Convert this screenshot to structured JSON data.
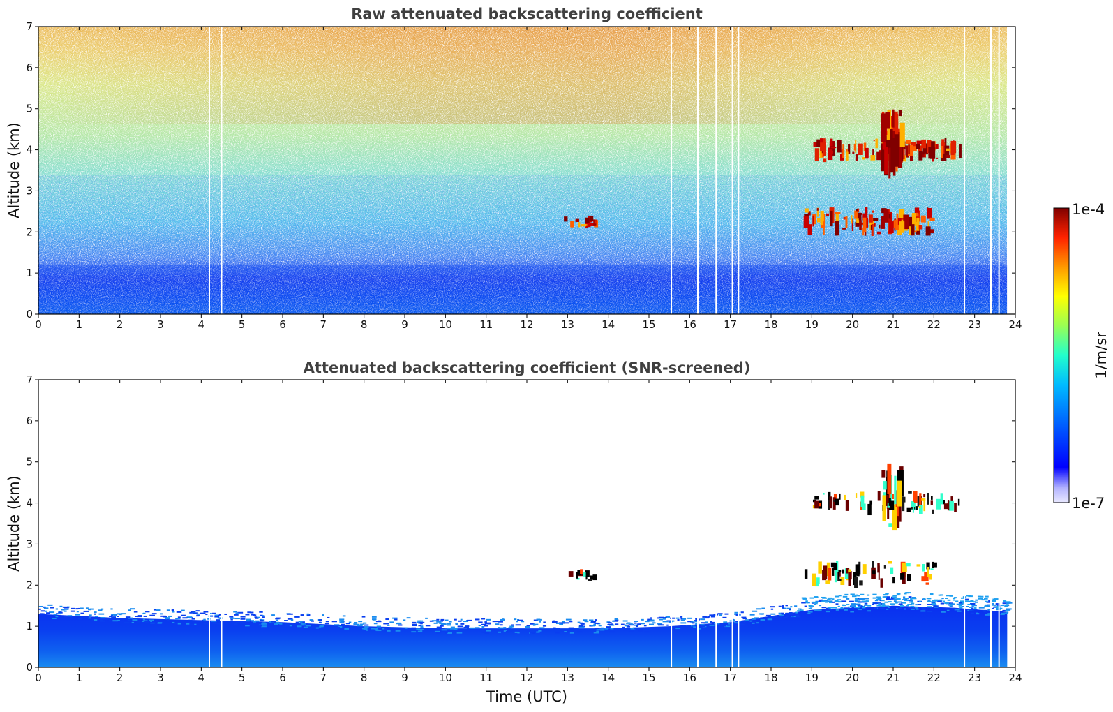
{
  "chart_data": [
    {
      "type": "heatmap",
      "title": "Raw attenuated backscattering coefficient",
      "xlabel": "",
      "ylabel": "Altitude (km)",
      "xlim": [
        0,
        24
      ],
      "ylim": [
        0,
        7
      ],
      "x_ticks": [
        "0",
        "1",
        "2",
        "3",
        "4",
        "5",
        "6",
        "7",
        "8",
        "9",
        "10",
        "11",
        "12",
        "13",
        "14",
        "15",
        "16",
        "17",
        "18",
        "19",
        "20",
        "21",
        "22",
        "23",
        "24"
      ],
      "y_ticks": [
        "0",
        "1",
        "2",
        "3",
        "4",
        "5",
        "6",
        "7"
      ],
      "data_end_time": 23.8,
      "gap_times": [
        4.2,
        4.5,
        15.55,
        16.2,
        16.65,
        17.05,
        17.2,
        22.75,
        23.4,
        23.6
      ],
      "features": [
        {
          "name": "Boundary-layer aerosol",
          "x": [
            0,
            23.8
          ],
          "y": [
            0,
            1.2
          ],
          "level": 0.3
        },
        {
          "name": "Cloud layer",
          "x": [
            19.0,
            22.7
          ],
          "y": [
            3.7,
            4.3
          ],
          "level": 1.0
        },
        {
          "name": "Cloud layer",
          "x": [
            20.7,
            21.3
          ],
          "y": [
            3.3,
            5.0
          ],
          "level": 0.95
        },
        {
          "name": "Cloud layer",
          "x": [
            18.8,
            22.1
          ],
          "y": [
            1.9,
            2.6
          ],
          "level": 0.95
        },
        {
          "name": "Cloud layer",
          "x": [
            12.9,
            13.9
          ],
          "y": [
            2.1,
            2.4
          ],
          "level": 0.8
        }
      ]
    },
    {
      "type": "heatmap",
      "title": "Attenuated backscattering coefficient (SNR-screened)",
      "xlabel": "Time (UTC)",
      "ylabel": "Altitude (km)",
      "xlim": [
        0,
        24
      ],
      "ylim": [
        0,
        7
      ],
      "x_ticks": [
        "0",
        "1",
        "2",
        "3",
        "4",
        "5",
        "6",
        "7",
        "8",
        "9",
        "10",
        "11",
        "12",
        "13",
        "14",
        "15",
        "16",
        "17",
        "18",
        "19",
        "20",
        "21",
        "22",
        "23",
        "24"
      ],
      "y_ticks": [
        "0",
        "1",
        "2",
        "3",
        "4",
        "5",
        "6",
        "7"
      ],
      "data_end_time": 23.8,
      "gap_times": [
        4.2,
        4.5,
        15.55,
        16.2,
        16.65,
        17.05,
        17.2,
        22.75,
        23.4,
        23.6
      ],
      "boundary_layer_top_km": [
        {
          "t": 0,
          "h": 1.3
        },
        {
          "t": 2,
          "h": 1.2
        },
        {
          "t": 4,
          "h": 1.15
        },
        {
          "t": 6,
          "h": 1.1
        },
        {
          "t": 8,
          "h": 1.0
        },
        {
          "t": 10,
          "h": 0.95
        },
        {
          "t": 12,
          "h": 0.95
        },
        {
          "t": 14,
          "h": 0.95
        },
        {
          "t": 15.5,
          "h": 1.0
        },
        {
          "t": 17,
          "h": 1.1
        },
        {
          "t": 19,
          "h": 1.4
        },
        {
          "t": 21,
          "h": 1.5
        },
        {
          "t": 22.5,
          "h": 1.45
        },
        {
          "t": 23.8,
          "h": 1.35
        }
      ]
    }
  ],
  "colorbar": {
    "label": "1/m/sr",
    "max_label": "1e-4",
    "min_label": "1e-7",
    "scale": "log",
    "colors": [
      "#e8e8ff",
      "#b3b3ff",
      "#0000ff",
      "#0066ff",
      "#00ccff",
      "#33ffcc",
      "#99ff66",
      "#ffff00",
      "#ff9900",
      "#ff3300",
      "#cc0000",
      "#800000"
    ]
  }
}
